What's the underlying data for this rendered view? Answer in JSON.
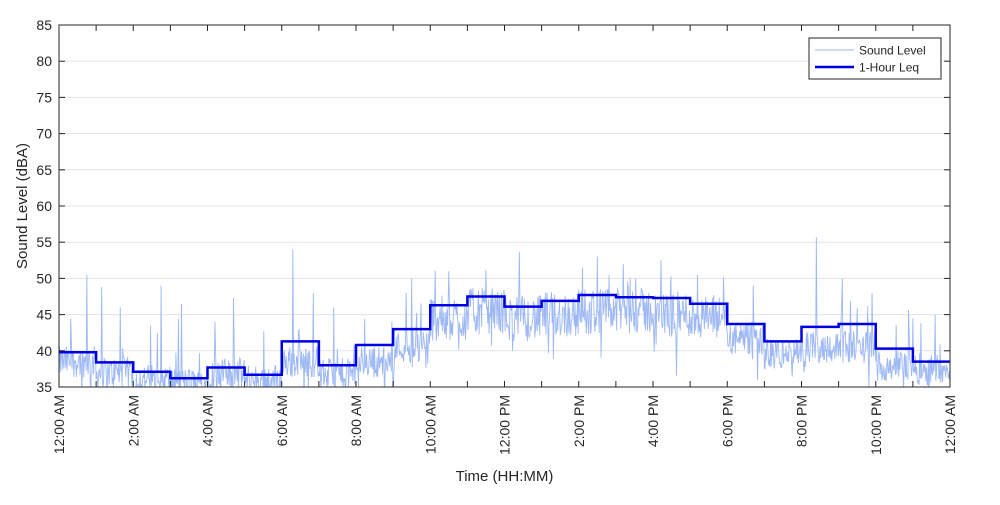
{
  "chart_data": {
    "type": "line",
    "xlabel": "Time (HH:MM)",
    "ylabel": "Sound Level (dBA)",
    "xlim": [
      0,
      24
    ],
    "ylim": [
      35,
      85
    ],
    "grid": "horizontal",
    "legend_position": "top-right",
    "y_ticks": [
      35,
      40,
      45,
      50,
      55,
      60,
      65,
      70,
      75,
      80,
      85
    ],
    "x_ticks": [
      {
        "hour": 0,
        "label": "12:00 AM"
      },
      {
        "hour": 2,
        "label": "2:00 AM"
      },
      {
        "hour": 4,
        "label": "4:00 AM"
      },
      {
        "hour": 6,
        "label": "6:00 AM"
      },
      {
        "hour": 8,
        "label": "8:00 AM"
      },
      {
        "hour": 10,
        "label": "10:00 AM"
      },
      {
        "hour": 12,
        "label": "12:00 PM"
      },
      {
        "hour": 14,
        "label": "2:00 PM"
      },
      {
        "hour": 16,
        "label": "4:00 PM"
      },
      {
        "hour": 18,
        "label": "6:00 PM"
      },
      {
        "hour": 20,
        "label": "8:00 PM"
      },
      {
        "hour": 22,
        "label": "10:00 PM"
      },
      {
        "hour": 24,
        "label": "12:00 AM"
      }
    ],
    "series": [
      {
        "name": "Sound Level",
        "color": "#9db8f5",
        "kind": "raw",
        "hourly_baseline": [
          38.5,
          37.0,
          36.0,
          35.5,
          36.8,
          36.0,
          38.5,
          36.8,
          38.5,
          40.5,
          44.5,
          45.5,
          44.5,
          45.0,
          45.5,
          45.5,
          45.0,
          44.5,
          41.5,
          39.5,
          40.5,
          40.5,
          38.0,
          37.5
        ],
        "peaks": [
          {
            "t": 0.75,
            "v": 50.5
          },
          {
            "t": 1.15,
            "v": 48.8
          },
          {
            "t": 1.65,
            "v": 46.0
          },
          {
            "t": 2.75,
            "v": 49.0
          },
          {
            "t": 3.3,
            "v": 46.5
          },
          {
            "t": 4.2,
            "v": 44.0
          },
          {
            "t": 4.7,
            "v": 47.3
          },
          {
            "t": 6.3,
            "v": 54.0
          },
          {
            "t": 6.85,
            "v": 48.0
          },
          {
            "t": 7.4,
            "v": 46.0
          },
          {
            "t": 9.5,
            "v": 50.0
          },
          {
            "t": 10.5,
            "v": 51.0
          },
          {
            "t": 12.4,
            "v": 53.7
          },
          {
            "t": 14.1,
            "v": 51.5
          },
          {
            "t": 14.5,
            "v": 53.0
          },
          {
            "t": 15.2,
            "v": 52.0
          },
          {
            "t": 17.2,
            "v": 50.5
          },
          {
            "t": 18.7,
            "v": 49.0
          },
          {
            "t": 20.4,
            "v": 55.7
          },
          {
            "t": 21.1,
            "v": 50.0
          },
          {
            "t": 21.9,
            "v": 48.0
          },
          {
            "t": 23.0,
            "v": 44.5
          },
          {
            "t": 23.6,
            "v": 45.0
          }
        ]
      },
      {
        "name": "1-Hour Leq",
        "color": "#0000e6",
        "kind": "step",
        "x": [
          0,
          1,
          2,
          3,
          4,
          5,
          6,
          7,
          8,
          9,
          10,
          11,
          12,
          13,
          14,
          15,
          16,
          17,
          18,
          19,
          20,
          21,
          22,
          23
        ],
        "values": [
          39.8,
          38.4,
          37.1,
          36.2,
          37.7,
          36.7,
          41.3,
          38.0,
          40.8,
          43.0,
          46.3,
          47.5,
          46.1,
          46.9,
          47.7,
          47.4,
          47.3,
          46.5,
          43.7,
          41.3,
          43.3,
          43.7,
          40.3,
          38.5
        ]
      }
    ]
  }
}
